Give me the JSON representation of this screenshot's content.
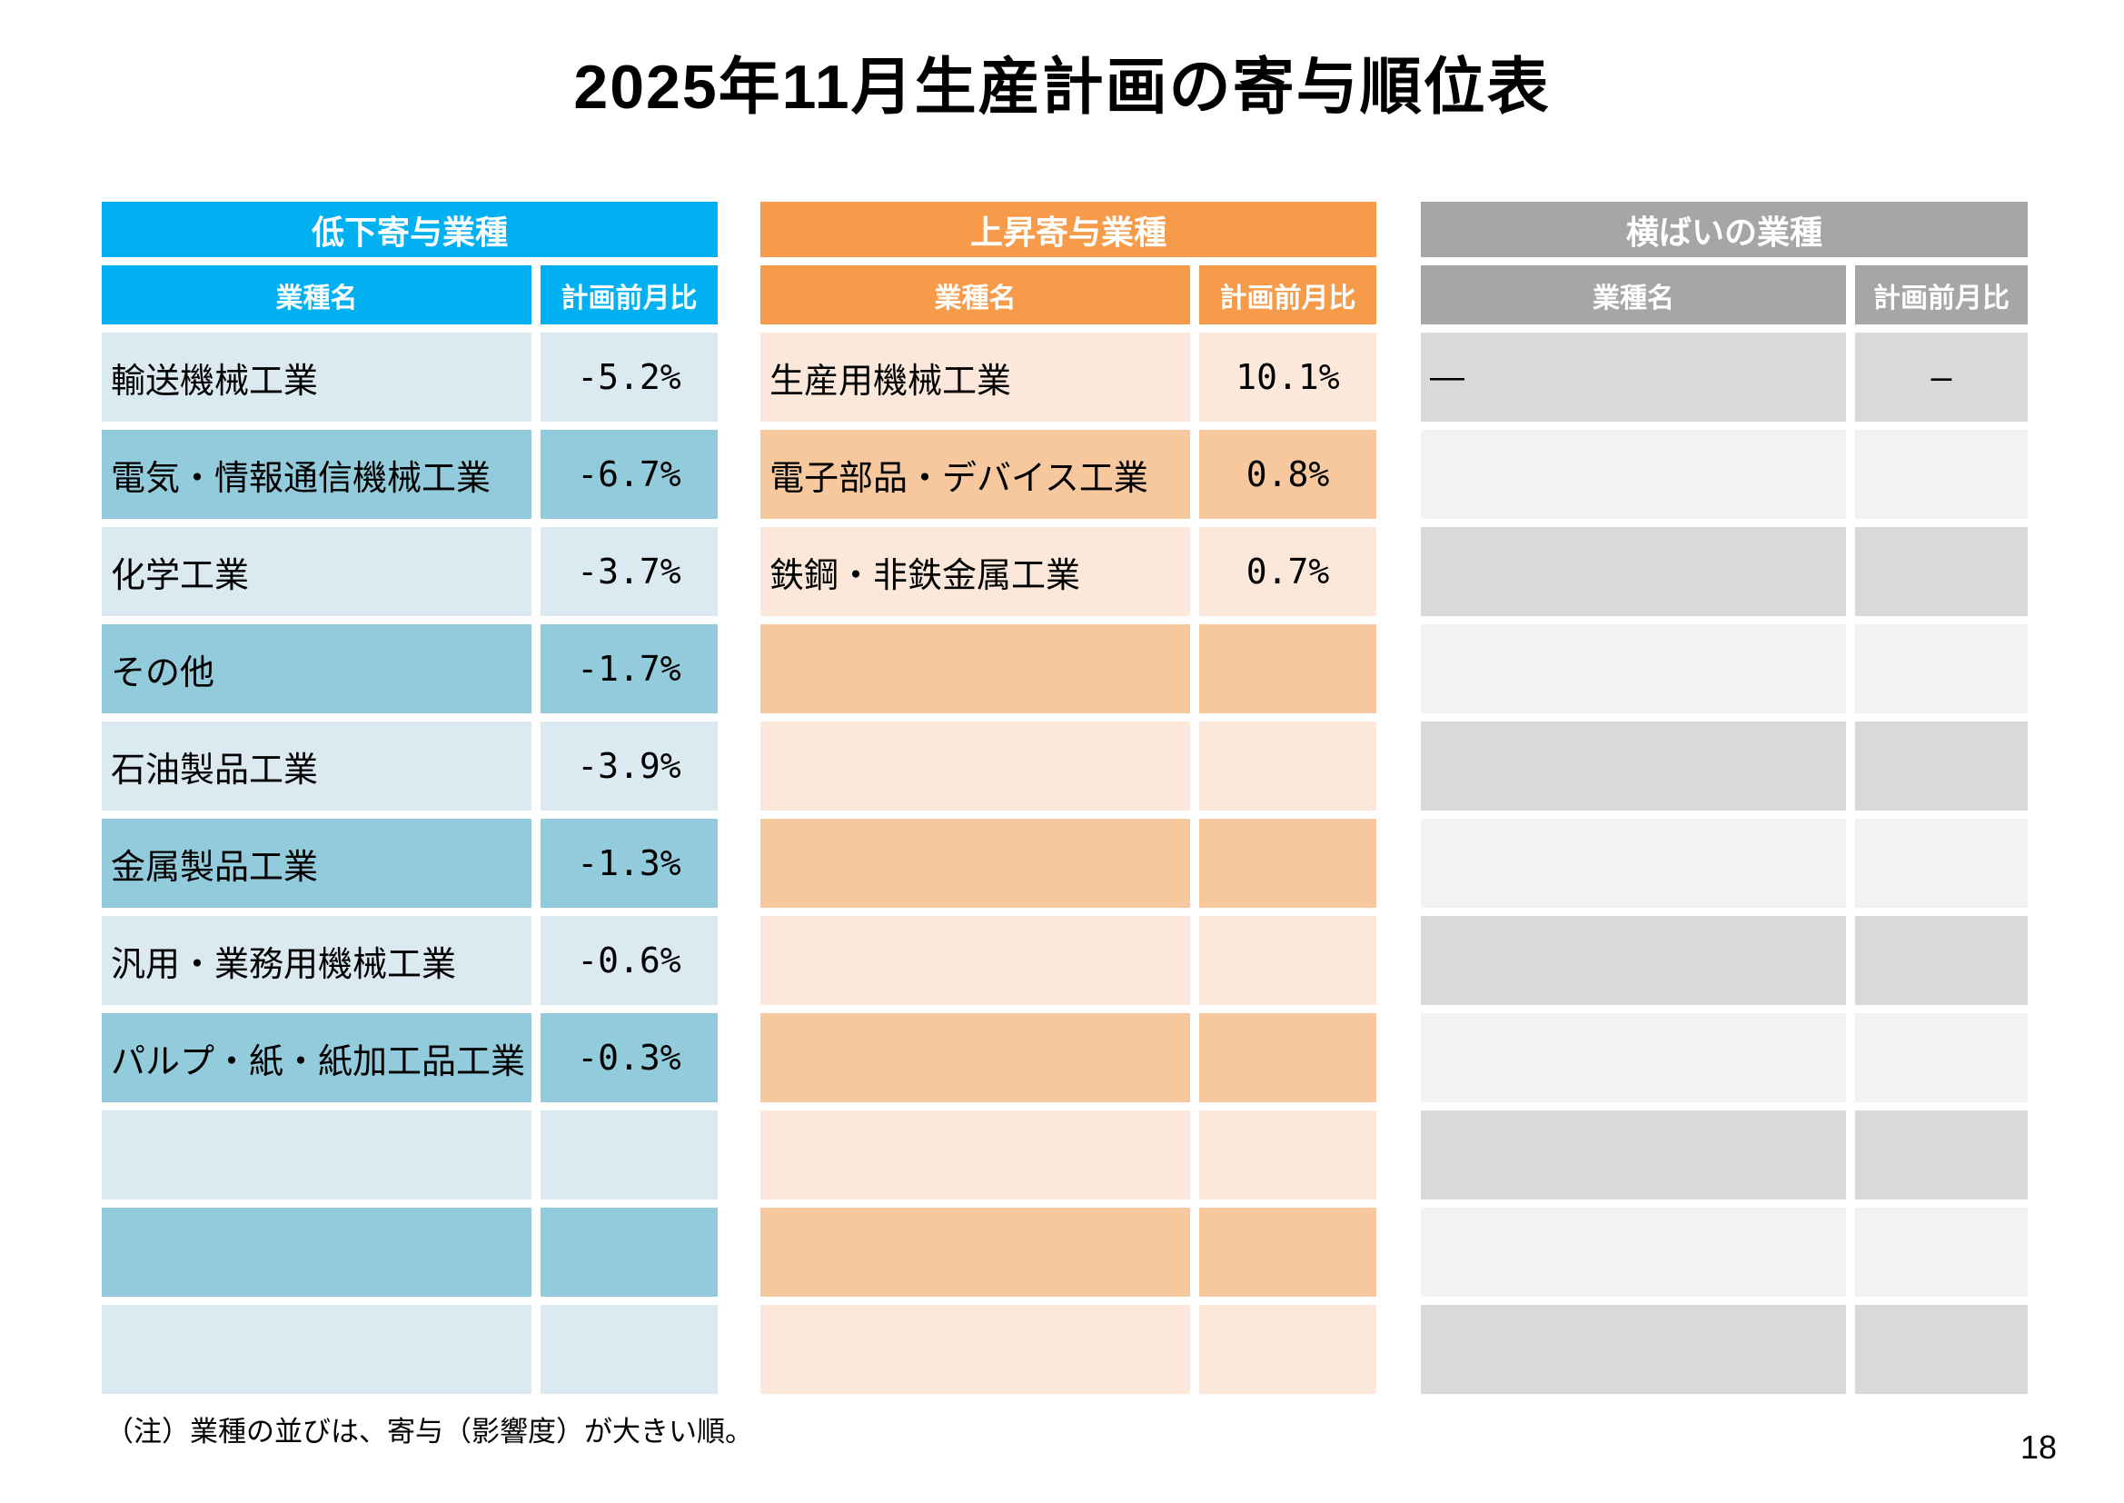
{
  "page": {
    "title": "2025年11月生産計画の寄与順位表",
    "note": "（注）業種の並びは、寄与（影響度）が大きい順。",
    "page_number": "18"
  },
  "columns": {
    "name": "業種名",
    "value": "計画前月比"
  },
  "tables": [
    {
      "id": "decline",
      "title": "低下寄与業種",
      "colors": {
        "header": "#00b0f0",
        "row_light": "#dbe9f0",
        "row_dark": "#92cbdb"
      },
      "first_row_shade": "light",
      "rows": [
        {
          "name": "輸送機械工業",
          "value": "-5.2%"
        },
        {
          "name": "電気・情報通信機械工業",
          "value": "-6.7%"
        },
        {
          "name": "化学工業",
          "value": "-3.7%"
        },
        {
          "name": "その他",
          "value": "-1.7%"
        },
        {
          "name": "石油製品工業",
          "value": "-3.9%"
        },
        {
          "name": "金属製品工業",
          "value": "-1.3%"
        },
        {
          "name": "汎用・業務用機械工業",
          "value": "-0.6%"
        },
        {
          "name": "パルプ・紙・紙加工品工業",
          "value": "-0.3%"
        },
        {
          "name": "",
          "value": ""
        },
        {
          "name": "",
          "value": ""
        },
        {
          "name": "",
          "value": ""
        }
      ]
    },
    {
      "id": "rise",
      "title": "上昇寄与業種",
      "colors": {
        "header": "#f59b49",
        "row_light": "#fbe8db",
        "row_dark": "#f7c79e"
      },
      "first_row_shade": "light",
      "rows": [
        {
          "name": "生産用機械工業",
          "value": "10.1%"
        },
        {
          "name": "電子部品・デバイス工業",
          "value": "0.8%"
        },
        {
          "name": "鉄鋼・非鉄金属工業",
          "value": "0.7%"
        },
        {
          "name": "",
          "value": ""
        },
        {
          "name": "",
          "value": ""
        },
        {
          "name": "",
          "value": ""
        },
        {
          "name": "",
          "value": ""
        },
        {
          "name": "",
          "value": ""
        },
        {
          "name": "",
          "value": ""
        },
        {
          "name": "",
          "value": ""
        },
        {
          "name": "",
          "value": ""
        }
      ]
    },
    {
      "id": "flat",
      "title": "横ばいの業種",
      "colors": {
        "header": "#a6a6a6",
        "row_light": "#f2f2f2",
        "row_dark": "#d9d9d9"
      },
      "first_row_shade": "dark",
      "rows": [
        {
          "name": "—",
          "value": "—"
        },
        {
          "name": "",
          "value": ""
        },
        {
          "name": "",
          "value": ""
        },
        {
          "name": "",
          "value": ""
        },
        {
          "name": "",
          "value": ""
        },
        {
          "name": "",
          "value": ""
        },
        {
          "name": "",
          "value": ""
        },
        {
          "name": "",
          "value": ""
        },
        {
          "name": "",
          "value": ""
        },
        {
          "name": "",
          "value": ""
        },
        {
          "name": "",
          "value": ""
        }
      ]
    }
  ]
}
